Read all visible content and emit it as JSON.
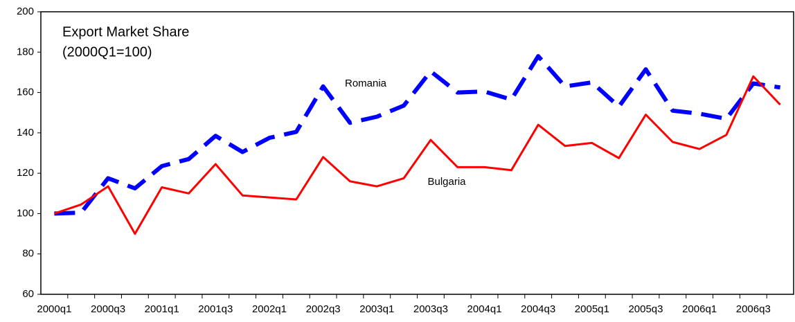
{
  "chart_data": {
    "type": "line",
    "title": "Export Market Share",
    "subtitle": "(2000Q1=100)",
    "categories": [
      "2000q1",
      null,
      "2000q3",
      null,
      "2001q1",
      null,
      "2001q3",
      null,
      "2002q1",
      null,
      "2002q3",
      null,
      "2003q1",
      null,
      "2003q3",
      null,
      "2004q1",
      null,
      "2004q3",
      null,
      "2005q1",
      null,
      "2005q3",
      null,
      "2006q1",
      null,
      "2006q3",
      null
    ],
    "series": [
      {
        "name": "Romania",
        "color": "#0000ff",
        "style": "dashed",
        "values": [
          100,
          100.5,
          117.5,
          112.5,
          123.5,
          127,
          138.5,
          130.5,
          137.5,
          140.5,
          163,
          145,
          148,
          153.5,
          170.5,
          160,
          160.5,
          156.5,
          178,
          163,
          165,
          153,
          171.5,
          151,
          149.5,
          147,
          164.5,
          162.5
        ]
      },
      {
        "name": "Bulgaria",
        "color": "#ff0000",
        "style": "solid",
        "values": [
          100,
          104.5,
          113.5,
          90,
          113,
          110,
          124.5,
          109,
          108,
          107,
          128,
          116,
          113.5,
          117.5,
          136.5,
          123,
          123,
          121.5,
          144,
          133.5,
          135,
          127.5,
          149,
          135.5,
          132,
          139,
          168,
          154
        ]
      }
    ],
    "ylim": [
      60,
      200
    ],
    "yticks": [
      60,
      80,
      100,
      120,
      140,
      160,
      180,
      200
    ],
    "grid": false
  }
}
